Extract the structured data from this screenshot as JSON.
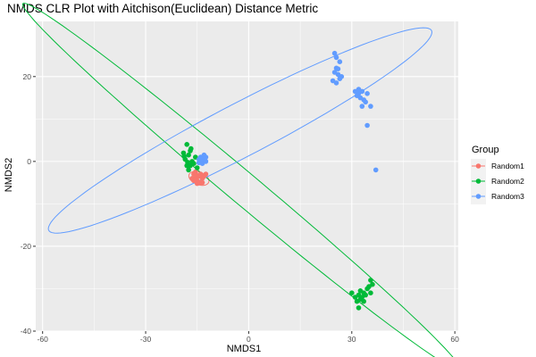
{
  "chart_data": {
    "type": "scatter",
    "title": "NMDS CLR Plot with Aitchison(Euclidean) Distance Metric",
    "xlabel": "NMDS1",
    "ylabel": "NMDS2",
    "xlim": [
      -62,
      61
    ],
    "ylim": [
      -40,
      33
    ],
    "x_ticks": [
      -60,
      -30,
      0,
      30,
      60
    ],
    "y_ticks": [
      -40,
      -20,
      0,
      20
    ],
    "grid": true,
    "legend": {
      "title": "Group",
      "position": "right"
    },
    "series": [
      {
        "name": "Random1",
        "color": "#F8766D",
        "points": [
          [
            -16,
            -3
          ],
          [
            -15.5,
            -4
          ],
          [
            -15,
            -4.5
          ],
          [
            -14.5,
            -3.5
          ],
          [
            -14,
            -5
          ],
          [
            -13.5,
            -4
          ],
          [
            -15,
            -5.2
          ],
          [
            -16,
            -4.5
          ],
          [
            -14,
            -3
          ],
          [
            -13,
            -3.5
          ],
          [
            -12.5,
            -3
          ],
          [
            -15.5,
            -2.5
          ],
          [
            -16.5,
            -4
          ],
          [
            -14.8,
            -4.8
          ],
          [
            -13.5,
            -5
          ],
          [
            -15.2,
            -3.2
          ]
        ],
        "ellipse": {
          "center": [
            -14.5,
            -4
          ],
          "semi_axes": [
            3,
            1.5
          ],
          "angle_deg": -15
        }
      },
      {
        "name": "Random2",
        "color": "#00BA38",
        "points": [
          [
            -19,
            2
          ],
          [
            -18,
            4
          ],
          [
            -17.5,
            1.5
          ],
          [
            -18.5,
            0.5
          ],
          [
            -17,
            -1
          ],
          [
            -17.5,
            -2
          ],
          [
            -16.5,
            0
          ],
          [
            -18,
            -1
          ],
          [
            -16,
            -0.5
          ],
          [
            -17,
            2.5
          ],
          [
            -15,
            -1.5
          ],
          [
            -15.5,
            1
          ],
          [
            -18.8,
            1.2
          ],
          [
            -16.8,
            3
          ],
          [
            -17.8,
            -0.2
          ],
          [
            30,
            -31
          ],
          [
            31,
            -32
          ],
          [
            31.5,
            -33
          ],
          [
            32,
            -31.5
          ],
          [
            32.5,
            -30.5
          ],
          [
            33,
            -32
          ],
          [
            33.5,
            -31
          ],
          [
            34,
            -31.5
          ],
          [
            34.5,
            -30
          ],
          [
            35,
            -29.5
          ],
          [
            35.5,
            -31
          ],
          [
            36,
            -29
          ],
          [
            35.5,
            -28
          ],
          [
            32,
            -34.5
          ],
          [
            32.5,
            -32.5
          ],
          [
            33.5,
            -33
          ]
        ],
        "ellipse": {
          "center": [
            -2,
            -6
          ],
          "semi_axes": [
            77,
            4
          ],
          "angle_deg": -34.1
        }
      },
      {
        "name": "Random3",
        "color": "#619CFF",
        "points": [
          [
            -14.5,
            0.5
          ],
          [
            -14,
            1
          ],
          [
            -13.5,
            0.5
          ],
          [
            -13,
            0
          ],
          [
            -13.5,
            -0.5
          ],
          [
            -14,
            0
          ],
          [
            -12.5,
            1
          ],
          [
            -13,
            1.5
          ],
          [
            -12.5,
            0
          ],
          [
            -14.5,
            -0.3
          ],
          [
            25,
            25.5
          ],
          [
            25.5,
            24.5
          ],
          [
            26.5,
            23.5
          ],
          [
            25.5,
            22
          ],
          [
            25,
            21
          ],
          [
            26,
            20.5
          ],
          [
            26.5,
            19.5
          ],
          [
            24.5,
            19
          ],
          [
            25.5,
            18.5
          ],
          [
            27,
            20
          ],
          [
            26,
            21.8
          ],
          [
            31,
            16.5
          ],
          [
            31.5,
            15.5
          ],
          [
            32,
            16
          ],
          [
            32.5,
            15
          ],
          [
            33,
            16.5
          ],
          [
            33.5,
            14.5
          ],
          [
            34.5,
            16
          ],
          [
            34,
            14
          ],
          [
            33,
            13
          ],
          [
            35.5,
            13
          ],
          [
            32,
            17
          ],
          [
            34.5,
            8.5
          ],
          [
            37,
            -2
          ]
        ],
        "ellipse": {
          "center": [
            -2.5,
            7.3
          ],
          "semi_axes": [
            60.5,
            6.5
          ],
          "angle_deg": 22.8
        }
      }
    ]
  }
}
